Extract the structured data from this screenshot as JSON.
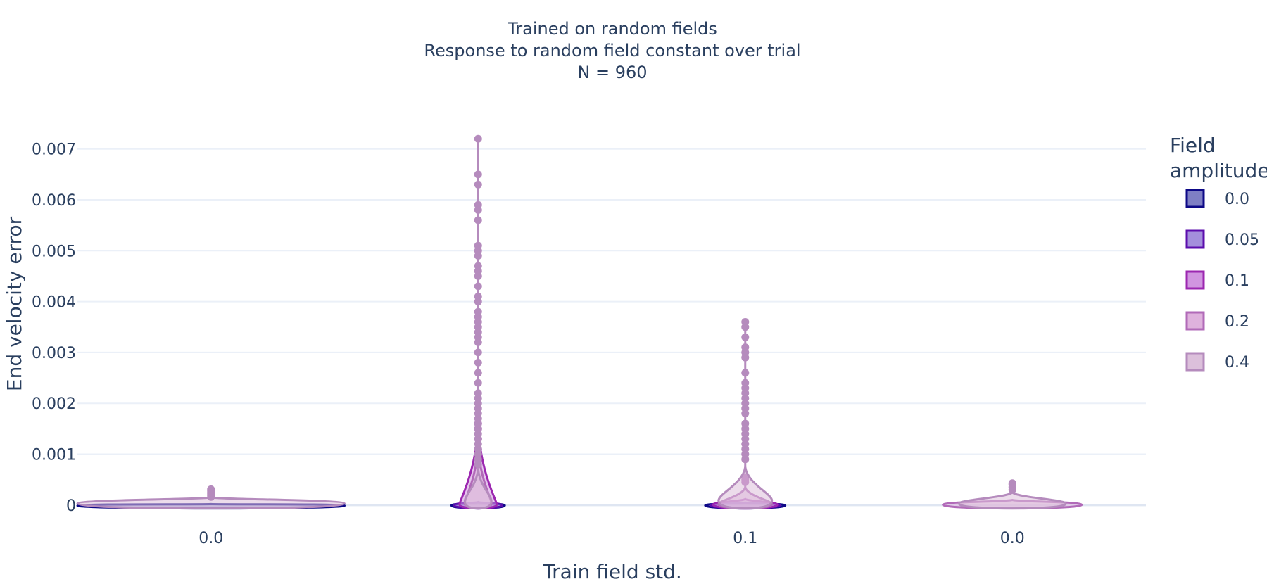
{
  "chart_data": {
    "type": "violin",
    "title_lines": [
      "Trained on random fields",
      "Response to random field constant over trial",
      "N = 960"
    ],
    "xlabel": "Train field std.",
    "ylabel": "End velocity error",
    "categories": [
      "0.0",
      "",
      "0.1",
      "0.0"
    ],
    "x_tick_labels": [
      "0.0",
      "0.1",
      "0.0"
    ],
    "y_ticks": [
      0,
      0.001,
      0.002,
      0.003,
      0.004,
      0.005,
      0.006,
      0.007
    ],
    "y_tick_labels": [
      "0",
      "0.001",
      "0.002",
      "0.003",
      "0.004",
      "0.005",
      "0.006",
      "0.007"
    ],
    "ylim": [
      -3e-05,
      0.0073
    ],
    "grid": true,
    "legend": {
      "title_lines": [
        "Field",
        "amplitude"
      ],
      "placement": "right",
      "items": [
        {
          "label": "0.0",
          "fill": "#7f7fc4",
          "stroke": "#0d0887"
        },
        {
          "label": "0.05",
          "fill": "#a48fdc",
          "stroke": "#5b0dad"
        },
        {
          "label": "0.1",
          "fill": "#d195e0",
          "stroke": "#9c27b0"
        },
        {
          "label": "0.2",
          "fill": "#dfb2dd",
          "stroke": "#b16ab8"
        },
        {
          "label": "0.4",
          "fill": "#dcc0db",
          "stroke": "#b58bbd"
        }
      ]
    },
    "groups": [
      {
        "category_index": 0,
        "violins": [
          {
            "amp": "0.0",
            "max": 2e-05,
            "peak": 0.0,
            "halfwidth": 0.5,
            "outliers": []
          },
          {
            "amp": "0.4",
            "max": 0.00015,
            "peak": 8e-05,
            "halfwidth": 0.5,
            "outliers": [
              0.00016,
              0.00019,
              0.00022,
              0.00025,
              0.00028,
              0.00031
            ]
          }
        ]
      },
      {
        "category_index": 1,
        "violins": [
          {
            "amp": "0.0",
            "max": 3e-05,
            "peak": 1e-05,
            "halfwidth": 0.1,
            "outliers": []
          },
          {
            "amp": "0.05",
            "max": 6e-05,
            "peak": 2e-05,
            "halfwidth": 0.09,
            "outliers": []
          },
          {
            "amp": "0.1",
            "max": 0.0016,
            "peak": 5e-05,
            "halfwidth": 0.07,
            "outliers": [
              0.0011,
              0.0013,
              0.0015,
              0.0016
            ]
          },
          {
            "amp": "0.2",
            "max": 0.0012,
            "peak": 0.0001,
            "halfwidth": 0.05,
            "outliers": []
          },
          {
            "amp": "0.4",
            "max": 0.00072,
            "peak": 0.00017,
            "halfwidth": 0.05,
            "outliers": [
              0.0008,
              0.0009,
              0.001,
              0.0011,
              0.0012,
              0.0013,
              0.0014,
              0.0015,
              0.0016,
              0.0017,
              0.0018,
              0.0019,
              0.002,
              0.0021,
              0.0022,
              0.0024,
              0.0026,
              0.0028,
              0.003,
              0.0032,
              0.0033,
              0.0034,
              0.0035,
              0.0036,
              0.0037,
              0.0038,
              0.004,
              0.0041,
              0.0043,
              0.0045,
              0.0046,
              0.0047,
              0.0049,
              0.005,
              0.0051,
              0.0056,
              0.0058,
              0.0059,
              0.0063,
              0.0065,
              0.0072
            ]
          }
        ]
      },
      {
        "category_index": 2,
        "violins": [
          {
            "amp": "0.0",
            "max": 3e-05,
            "peak": 1e-05,
            "halfwidth": 0.15,
            "outliers": []
          },
          {
            "amp": "0.05",
            "max": 5e-05,
            "peak": 2e-05,
            "halfwidth": 0.13,
            "outliers": []
          },
          {
            "amp": "0.1",
            "max": 0.00012,
            "peak": 4e-05,
            "halfwidth": 0.12,
            "outliers": []
          },
          {
            "amp": "0.2",
            "max": 0.00035,
            "peak": 6e-05,
            "halfwidth": 0.1,
            "outliers": [
              0.00045,
              0.0005,
              0.00055
            ]
          },
          {
            "amp": "0.4",
            "max": 0.00075,
            "peak": 0.0002,
            "halfwidth": 0.1,
            "outliers": [
              0.0009,
              0.001,
              0.0011,
              0.0012,
              0.0013,
              0.0014,
              0.0015,
              0.0016,
              0.0018,
              0.0019,
              0.002,
              0.0021,
              0.0022,
              0.0023,
              0.0024,
              0.0026,
              0.0029,
              0.003,
              0.0031,
              0.0033,
              0.0035,
              0.0036
            ]
          }
        ]
      },
      {
        "category_index": 3,
        "violins": [
          {
            "amp": "0.2",
            "max": 0.0001,
            "peak": 4e-05,
            "halfwidth": 0.26,
            "outliers": []
          },
          {
            "amp": "0.4",
            "max": 0.00025,
            "peak": 8e-05,
            "halfwidth": 0.2,
            "outliers": [
              0.0003,
              0.00035,
              0.0004,
              0.00043
            ]
          }
        ]
      }
    ]
  }
}
